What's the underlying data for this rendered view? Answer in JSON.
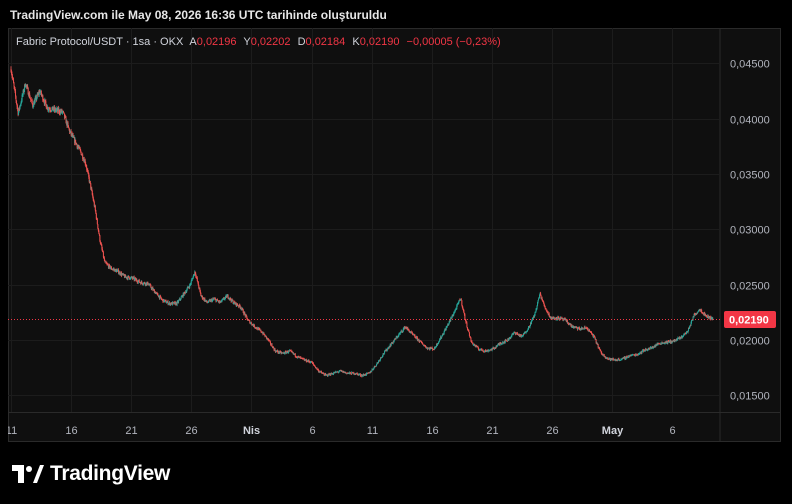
{
  "header": {
    "created_text": "TradingView.com ile May 08, 2026 16:36 UTC tarihinde oluşturuldu"
  },
  "legend": {
    "symbol": "Fabric Protocol/USDT · 1sa · OKX",
    "open_label": "A",
    "open": "0,02196",
    "high_label": "Y",
    "high": "0,02202",
    "low_label": "D",
    "low": "0,02184",
    "close_label": "K",
    "close": "0,02190",
    "change": "−0,00005 (−0,23%)"
  },
  "last_price_label": "0,02190",
  "logo": {
    "text": "TradingView"
  },
  "colors": {
    "up": "#26a69a",
    "down": "#ef5350",
    "background": "#0f0f0f",
    "price_line": "#f23645"
  },
  "chart_data": {
    "type": "candlestick",
    "title": "Fabric Protocol/USDT · 1sa · OKX",
    "xlabel": "",
    "ylabel": "",
    "ylim": [
      0.0135,
      0.0482
    ],
    "y_ticks": [
      {
        "value": 0.045,
        "label": "0,04500"
      },
      {
        "value": 0.04,
        "label": "0,04000"
      },
      {
        "value": 0.035,
        "label": "0,03500"
      },
      {
        "value": 0.03,
        "label": "0,03000"
      },
      {
        "value": 0.025,
        "label": "0,02500"
      },
      {
        "value": 0.02,
        "label": "0,02000"
      },
      {
        "value": 0.015,
        "label": "0,01500"
      }
    ],
    "x_ticks": [
      {
        "day": 11,
        "label": "11",
        "bold": false
      },
      {
        "day": 16,
        "label": "16",
        "bold": false
      },
      {
        "day": 21,
        "label": "21",
        "bold": false
      },
      {
        "day": 26,
        "label": "26",
        "bold": false
      },
      {
        "day": 31,
        "label": "Nis",
        "bold": true
      },
      {
        "day": 36,
        "label": "6",
        "bold": false
      },
      {
        "day": 41,
        "label": "11",
        "bold": false
      },
      {
        "day": 46,
        "label": "16",
        "bold": false
      },
      {
        "day": 51,
        "label": "21",
        "bold": false
      },
      {
        "day": 56,
        "label": "26",
        "bold": false
      },
      {
        "day": 61,
        "label": "May",
        "bold": true
      },
      {
        "day": 66,
        "label": "6",
        "bold": false
      }
    ],
    "xlim": [
      11,
      69.4
    ],
    "last_price": 0.0219,
    "series": [
      {
        "values": [
          [
            11.0,
            0.0445
          ],
          [
            11.6,
            0.0405
          ],
          [
            12.2,
            0.0432
          ],
          [
            12.8,
            0.0412
          ],
          [
            13.4,
            0.0425
          ],
          [
            14.0,
            0.041
          ],
          [
            14.6,
            0.0408
          ],
          [
            15.3,
            0.0406
          ],
          [
            15.9,
            0.0388
          ],
          [
            16.4,
            0.0378
          ],
          [
            16.8,
            0.037
          ],
          [
            17.2,
            0.036
          ],
          [
            17.6,
            0.034
          ],
          [
            18.0,
            0.0318
          ],
          [
            18.4,
            0.029
          ],
          [
            18.8,
            0.027
          ],
          [
            19.3,
            0.0265
          ],
          [
            19.9,
            0.0262
          ],
          [
            20.5,
            0.0257
          ],
          [
            21.1,
            0.0256
          ],
          [
            21.8,
            0.0252
          ],
          [
            22.4,
            0.0251
          ],
          [
            23.0,
            0.0243
          ],
          [
            23.6,
            0.0236
          ],
          [
            24.2,
            0.0233
          ],
          [
            24.8,
            0.0233
          ],
          [
            25.4,
            0.0242
          ],
          [
            25.9,
            0.025
          ],
          [
            26.3,
            0.0262
          ],
          [
            26.8,
            0.024
          ],
          [
            27.3,
            0.0234
          ],
          [
            27.9,
            0.0237
          ],
          [
            28.4,
            0.0234
          ],
          [
            29.0,
            0.024
          ],
          [
            29.5,
            0.0234
          ],
          [
            30.1,
            0.023
          ],
          [
            30.7,
            0.0218
          ],
          [
            31.3,
            0.0212
          ],
          [
            31.9,
            0.0207
          ],
          [
            32.4,
            0.02
          ],
          [
            33.0,
            0.019
          ],
          [
            33.6,
            0.0188
          ],
          [
            34.2,
            0.019
          ],
          [
            34.8,
            0.0185
          ],
          [
            35.4,
            0.0182
          ],
          [
            36.0,
            0.018
          ],
          [
            36.6,
            0.0172
          ],
          [
            37.2,
            0.0168
          ],
          [
            37.8,
            0.017
          ],
          [
            38.4,
            0.0172
          ],
          [
            39.0,
            0.017
          ],
          [
            39.6,
            0.017
          ],
          [
            40.2,
            0.0168
          ],
          [
            40.8,
            0.017
          ],
          [
            41.4,
            0.0178
          ],
          [
            42.0,
            0.0188
          ],
          [
            42.6,
            0.0196
          ],
          [
            43.2,
            0.0204
          ],
          [
            43.8,
            0.0212
          ],
          [
            44.4,
            0.0205
          ],
          [
            45.0,
            0.0199
          ],
          [
            45.6,
            0.0193
          ],
          [
            46.2,
            0.0192
          ],
          [
            46.8,
            0.0203
          ],
          [
            47.4,
            0.0215
          ],
          [
            48.0,
            0.0228
          ],
          [
            48.4,
            0.0238
          ],
          [
            48.8,
            0.0218
          ],
          [
            49.3,
            0.0198
          ],
          [
            49.9,
            0.0192
          ],
          [
            50.5,
            0.019
          ],
          [
            51.1,
            0.0192
          ],
          [
            51.7,
            0.0197
          ],
          [
            52.3,
            0.02
          ],
          [
            52.9,
            0.0207
          ],
          [
            53.5,
            0.0203
          ],
          [
            54.1,
            0.0212
          ],
          [
            54.6,
            0.0224
          ],
          [
            55.0,
            0.0242
          ],
          [
            55.4,
            0.023
          ],
          [
            55.9,
            0.022
          ],
          [
            56.5,
            0.022
          ],
          [
            57.1,
            0.0218
          ],
          [
            57.7,
            0.0212
          ],
          [
            58.3,
            0.021
          ],
          [
            58.9,
            0.0211
          ],
          [
            59.5,
            0.0203
          ],
          [
            60.1,
            0.0188
          ],
          [
            60.7,
            0.0183
          ],
          [
            61.3,
            0.0182
          ],
          [
            61.9,
            0.0183
          ],
          [
            62.5,
            0.0186
          ],
          [
            63.1,
            0.0187
          ],
          [
            63.7,
            0.0191
          ],
          [
            64.3,
            0.0193
          ],
          [
            64.9,
            0.0197
          ],
          [
            65.5,
            0.0198
          ],
          [
            66.1,
            0.0199
          ],
          [
            66.7,
            0.0202
          ],
          [
            67.3,
            0.0208
          ],
          [
            67.8,
            0.0222
          ],
          [
            68.3,
            0.0228
          ],
          [
            68.8,
            0.0222
          ],
          [
            69.4,
            0.0219
          ]
        ]
      }
    ]
  }
}
